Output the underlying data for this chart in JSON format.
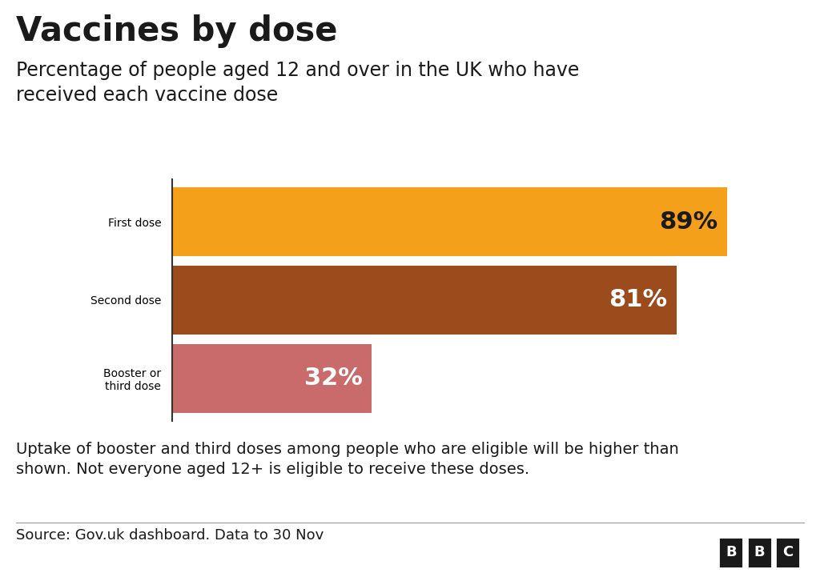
{
  "title": "Vaccines by dose",
  "subtitle": "Percentage of people aged 12 and over in the UK who have\nreceived each vaccine dose",
  "categories": [
    "First dose",
    "Second dose",
    "Booster or\nthird dose"
  ],
  "values": [
    89,
    81,
    32
  ],
  "bar_colors": [
    "#F5A01A",
    "#9B4B1C",
    "#C96B6B"
  ],
  "label_colors": [
    "#1a1a1a",
    "#ffffff",
    "#ffffff"
  ],
  "footnote": "Uptake of booster and third doses among people who are eligible will be higher than\nshown. Not everyone aged 12+ is eligible to receive these doses.",
  "source": "Source: Gov.uk dashboard. Data to 30 Nov",
  "bbc_label": "BBC",
  "background_color": "#ffffff",
  "xlim": [
    0,
    100
  ],
  "bar_height": 0.88,
  "title_fontsize": 30,
  "subtitle_fontsize": 17,
  "category_fontsize": 16,
  "value_fontsize": 22,
  "footnote_fontsize": 14,
  "source_fontsize": 13
}
